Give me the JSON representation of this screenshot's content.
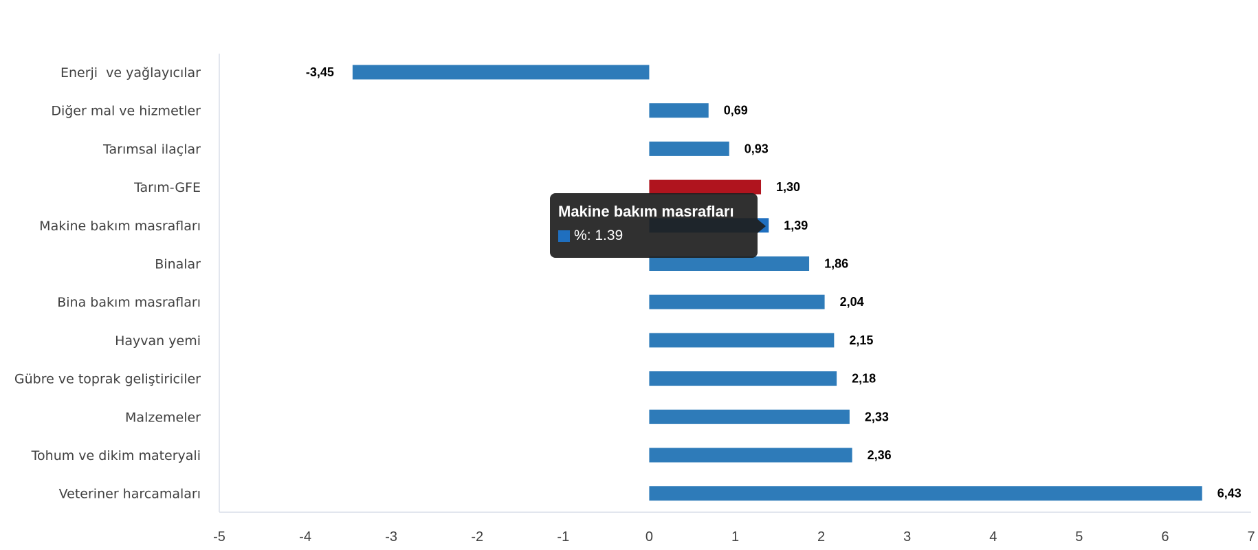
{
  "chart_data": {
    "type": "bar",
    "orientation": "horizontal",
    "categories": [
      "Enerji  ve yağlayıcılar",
      "Diğer mal ve hizmetler",
      "Tarımsal ilaçlar",
      "Tarım-GFE",
      "Makine bakım masrafları",
      "Binalar",
      "Bina bakım masrafları",
      "Hayvan yemi",
      "Gübre ve toprak geliştiriciler",
      "Malzemeler",
      "Tohum ve dikim materyali",
      "Veteriner harcamaları"
    ],
    "values": [
      -3.45,
      0.69,
      0.93,
      1.3,
      1.39,
      1.86,
      2.04,
      2.15,
      2.18,
      2.33,
      2.36,
      6.43
    ],
    "value_labels": [
      "-3,45",
      "0,69",
      "0,93",
      "1,30",
      "1,39",
      "1,86",
      "2,04",
      "2,15",
      "2,18",
      "2,33",
      "2,36",
      "6,43"
    ],
    "highlight_category": "Tarım-GFE",
    "xlim": [
      -5,
      7
    ],
    "xticks": [
      -5,
      -4,
      -3,
      -2,
      -1,
      0,
      1,
      2,
      3,
      4,
      5,
      6,
      7
    ],
    "title": "",
    "xlabel": "",
    "ylabel": "",
    "grid": false,
    "colors": {
      "bar": "#2e7bb9",
      "highlight": "#b0141e",
      "hover": "#1f6fbf"
    },
    "tooltip": {
      "title": "Makine bakım masrafları",
      "series_label": "%",
      "value": "1.39",
      "category_index": 4
    }
  }
}
